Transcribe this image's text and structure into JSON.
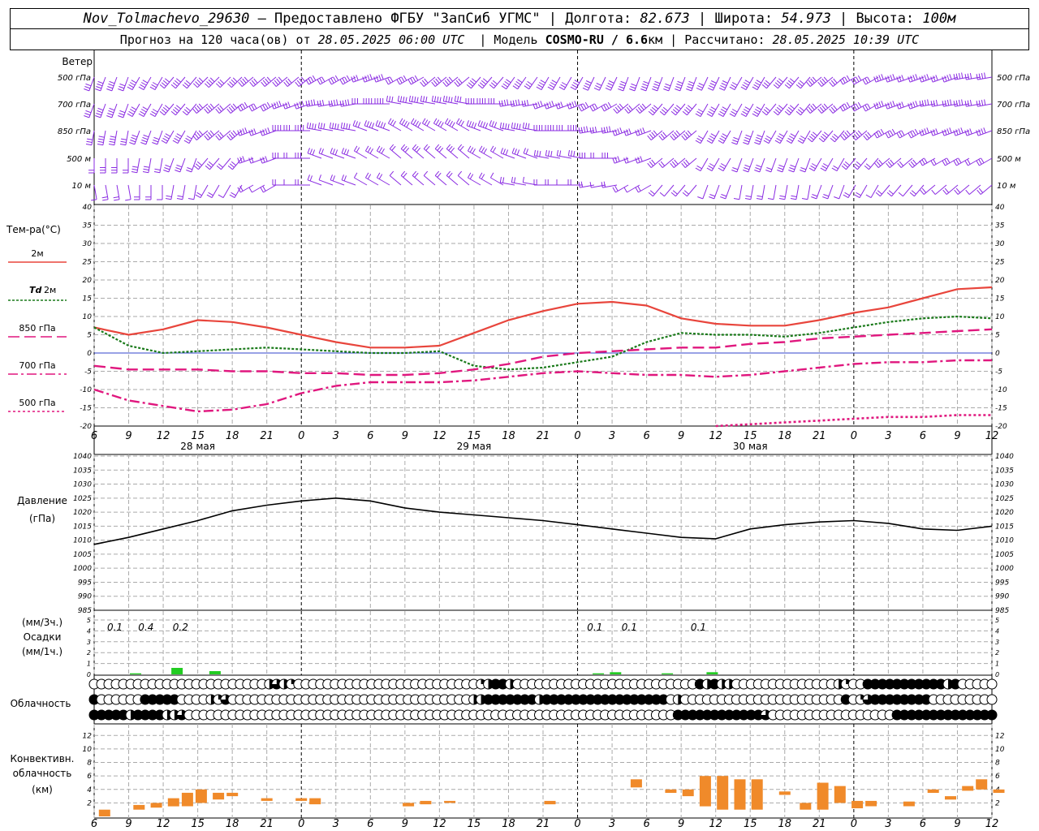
{
  "header": {
    "station": "Nov_Tolmachevo_29630",
    "provided_prefix": " – Предоставлено ФГБУ \"ЗапСиб УГМС\" | Долгота: ",
    "longitude": "82.673",
    "lat_label": " | Широта: ",
    "latitude": "54.973",
    "alt_label": " | Высота: ",
    "altitude": "100м",
    "forecast_prefix": "Прогноз на 120 часа(ов) от ",
    "forecast_start": "28.05.2025 06:00 UTC",
    "model_label": "  | Модель ",
    "model": "COSMO-RU / 6.6",
    "model_unit": "км",
    "calc_label": " | Рассчитано: ",
    "calc_time": "28.05.2025 10:39 UTC"
  },
  "colors": {
    "t2m": "#e8453c",
    "td2m": "#1a7a1a",
    "t850": "#e0177e",
    "t700": "#e0177e",
    "t500": "#e0177e",
    "wind": "#8a2be2",
    "pressure": "#000000",
    "precip": "#22cc22",
    "conv": "#f08a2a"
  },
  "labels": {
    "wind": "Ветер",
    "wind_levels": [
      "500 гПа",
      "700 гПа",
      "850 гПа",
      "500 м",
      "10   м"
    ],
    "temp": "Тем-ра(°C)",
    "t2m": "2м",
    "td_prefix": "Td",
    "td_suffix": "2м",
    "t850": "850 гПа",
    "t700": "700 гПа",
    "t500": "500 гПа",
    "pressure": "Давление",
    "pressure_unit": "(гПа)",
    "precip_top": "(мм/3ч.)",
    "precip_mid": "Осадки",
    "precip_bot": "(мм/1ч.)",
    "clouds": "Облачность",
    "conv1": "Конвективн.",
    "conv2": "облачность",
    "conv3": "(км)"
  },
  "x_axis": {
    "hours": [
      "6",
      "9",
      "12",
      "15",
      "18",
      "21",
      "0",
      "3",
      "6",
      "9",
      "12",
      "15",
      "18",
      "21",
      "0",
      "3",
      "6",
      "9",
      "12",
      "15",
      "18",
      "21",
      "0",
      "3",
      "6",
      "9",
      "12"
    ],
    "dates": [
      "28 мая",
      "29 мая",
      "30 мая"
    ]
  },
  "chart_data": [
    {
      "type": "line",
      "title": "Тем-ра(°C)",
      "x_hours_from_start": [
        0,
        1,
        2,
        3,
        4,
        5,
        6,
        7,
        8,
        9,
        10,
        11,
        12,
        13,
        14,
        15,
        16,
        17,
        18,
        19,
        20,
        21,
        22,
        23,
        24,
        25,
        26
      ],
      "ylim": [
        -20,
        40
      ],
      "series": [
        {
          "name": "2м",
          "values": [
            7,
            5,
            6.5,
            9,
            8.5,
            7,
            5,
            3,
            1.5,
            1.5,
            2,
            5.5,
            9,
            11.5,
            13.5,
            14,
            13,
            9.5,
            8,
            7.5,
            7.5,
            9,
            11,
            12.5,
            15,
            17.5,
            18
          ]
        },
        {
          "name": "Td 2м",
          "values": [
            7,
            2,
            0,
            0.5,
            1,
            1.5,
            1,
            0.5,
            0,
            0,
            0.5,
            -3.5,
            -4.5,
            -4,
            -2.5,
            -1,
            3,
            5.5,
            5,
            5,
            4.5,
            5.5,
            7,
            8.5,
            9.5,
            10,
            9.5
          ]
        },
        {
          "name": "850 гПа",
          "values": [
            -3.5,
            -4.5,
            -4.5,
            -4.5,
            -5,
            -5,
            -5.5,
            -5.5,
            -6,
            -6,
            -5.5,
            -4.5,
            -3,
            -1,
            0,
            0.5,
            1,
            1.5,
            1.5,
            2.5,
            3,
            4,
            4.5,
            5,
            5.5,
            6,
            6.5
          ]
        },
        {
          "name": "700 гПа",
          "values": [
            -10,
            -13,
            -14.5,
            -16,
            -15.5,
            -14,
            -11,
            -9,
            -8,
            -8,
            -8,
            -7.5,
            -6.5,
            -5.5,
            -5,
            -5.5,
            -6,
            -6,
            -6.5,
            -6,
            -5,
            -4,
            -3,
            -2.5,
            -2.5,
            -2,
            -2
          ]
        },
        {
          "name": "500 гПа",
          "values": [
            null,
            null,
            null,
            null,
            null,
            null,
            null,
            null,
            null,
            null,
            null,
            null,
            null,
            null,
            null,
            null,
            null,
            null,
            -20,
            -19.5,
            -19,
            -18.5,
            -18,
            -17.5,
            -17.5,
            -17,
            -17
          ]
        }
      ]
    },
    {
      "type": "line",
      "title": "Давление",
      "ylabel": "(гПа)",
      "ylim": [
        985,
        1040
      ],
      "x_hours_from_start": [
        0,
        1,
        2,
        3,
        4,
        5,
        6,
        7,
        8,
        9,
        10,
        11,
        12,
        13,
        14,
        15,
        16,
        17,
        18,
        19,
        20,
        21,
        22,
        23,
        24,
        25,
        26
      ],
      "series": [
        {
          "name": "Давление",
          "values": [
            1008.5,
            1011,
            1014,
            1017,
            1020.5,
            1022.5,
            1024,
            1025,
            1024,
            1021.5,
            1020,
            1019,
            1018,
            1017,
            1015.5,
            1014,
            1012.5,
            1011,
            1010.5,
            1014,
            1015.5,
            1016.5,
            1017,
            1016,
            1014,
            1013.5,
            1015
          ]
        }
      ]
    },
    {
      "type": "bar",
      "title": "Осадки",
      "ylim": [
        0,
        5
      ],
      "labels": [
        {
          "hour": 0.6,
          "text": "0.1"
        },
        {
          "hour": 1.5,
          "text": "0.4"
        },
        {
          "hour": 2.5,
          "text": "0.2"
        },
        {
          "hour": 14.5,
          "text": "0.1"
        },
        {
          "hour": 15.5,
          "text": "0.1"
        },
        {
          "hour": 17.5,
          "text": "0.1"
        }
      ],
      "hourly_values": [
        {
          "hour": 1.2,
          "value": 0.1
        },
        {
          "hour": 2.4,
          "value": 0.6
        },
        {
          "hour": 3.5,
          "value": 0.3
        },
        {
          "hour": 14.6,
          "value": 0.1
        },
        {
          "hour": 15.1,
          "value": 0.2
        },
        {
          "hour": 16.6,
          "value": 0.1
        },
        {
          "hour": 17.9,
          "value": 0.2
        }
      ]
    },
    {
      "type": "bar",
      "title": "Конвективн. облачность",
      "ylabel": "(км)",
      "ylim": [
        0,
        13
      ],
      "layers": [
        {
          "hour": 0.3,
          "base": 0,
          "top": 1
        },
        {
          "hour": 1.3,
          "base": 1,
          "top": 1.7
        },
        {
          "hour": 1.8,
          "base": 1.3,
          "top": 2
        },
        {
          "hour": 2.3,
          "base": 1.5,
          "top": 2.7
        },
        {
          "hour": 2.7,
          "base": 1.5,
          "top": 3.5
        },
        {
          "hour": 3.1,
          "base": 2,
          "top": 4
        },
        {
          "hour": 3.6,
          "base": 2.5,
          "top": 3.5
        },
        {
          "hour": 4.0,
          "base": 3,
          "top": 3.5
        },
        {
          "hour": 5.0,
          "base": 2.3,
          "top": 2.7
        },
        {
          "hour": 6.0,
          "base": 2.3,
          "top": 2.7
        },
        {
          "hour": 6.4,
          "base": 1.8,
          "top": 2.7
        },
        {
          "hour": 9.1,
          "base": 1.5,
          "top": 2
        },
        {
          "hour": 9.6,
          "base": 1.8,
          "top": 2.3
        },
        {
          "hour": 10.3,
          "base": 2,
          "top": 2.3
        },
        {
          "hour": 13.2,
          "base": 1.8,
          "top": 2.3
        },
        {
          "hour": 15.7,
          "base": 4.3,
          "top": 5.5
        },
        {
          "hour": 16.7,
          "base": 3.5,
          "top": 4
        },
        {
          "hour": 17.2,
          "base": 3,
          "top": 4
        },
        {
          "hour": 17.7,
          "base": 1.5,
          "top": 6
        },
        {
          "hour": 18.2,
          "base": 1,
          "top": 6
        },
        {
          "hour": 18.7,
          "base": 1,
          "top": 5.5
        },
        {
          "hour": 19.2,
          "base": 1,
          "top": 5.5
        },
        {
          "hour": 20.0,
          "base": 3.2,
          "top": 3.7
        },
        {
          "hour": 20.6,
          "base": 1,
          "top": 2
        },
        {
          "hour": 21.1,
          "base": 1,
          "top": 5
        },
        {
          "hour": 21.6,
          "base": 2,
          "top": 4.5
        },
        {
          "hour": 22.1,
          "base": 1.2,
          "top": 2.3
        },
        {
          "hour": 22.5,
          "base": 1.5,
          "top": 2.3
        },
        {
          "hour": 23.6,
          "base": 1.5,
          "top": 2.2
        },
        {
          "hour": 24.3,
          "base": 3.5,
          "top": 4
        },
        {
          "hour": 24.8,
          "base": 2.5,
          "top": 3
        },
        {
          "hour": 25.3,
          "base": 3.8,
          "top": 4.5
        },
        {
          "hour": 25.7,
          "base": 4,
          "top": 5.5
        },
        {
          "hour": 26.2,
          "base": 3.5,
          "top": 4
        }
      ]
    }
  ]
}
